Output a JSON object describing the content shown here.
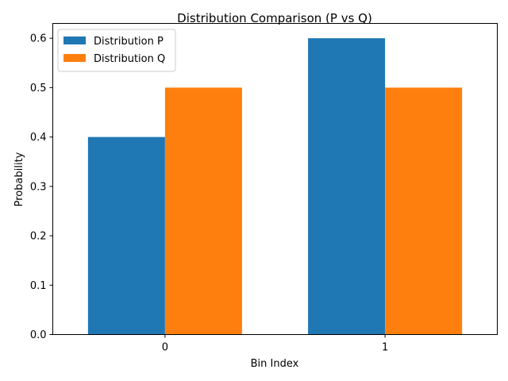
{
  "chart_data": {
    "type": "bar",
    "title": "Distribution Comparison (P vs Q)",
    "xlabel": "Bin Index",
    "ylabel": "Probability",
    "categories": [
      "0",
      "1"
    ],
    "series": [
      {
        "name": "Distribution P",
        "values": [
          0.4,
          0.6
        ],
        "color": "#1f77b4"
      },
      {
        "name": "Distribution Q",
        "values": [
          0.5,
          0.5
        ],
        "color": "#ff7f0e"
      }
    ],
    "ylim": [
      0,
      0.63
    ],
    "yticks": [
      0.0,
      0.1,
      0.2,
      0.3,
      0.4,
      0.5,
      0.6
    ],
    "ytick_labels": [
      "0.0",
      "0.1",
      "0.2",
      "0.3",
      "0.4",
      "0.5",
      "0.6"
    ],
    "grid": false,
    "legend_position": "top-left"
  }
}
